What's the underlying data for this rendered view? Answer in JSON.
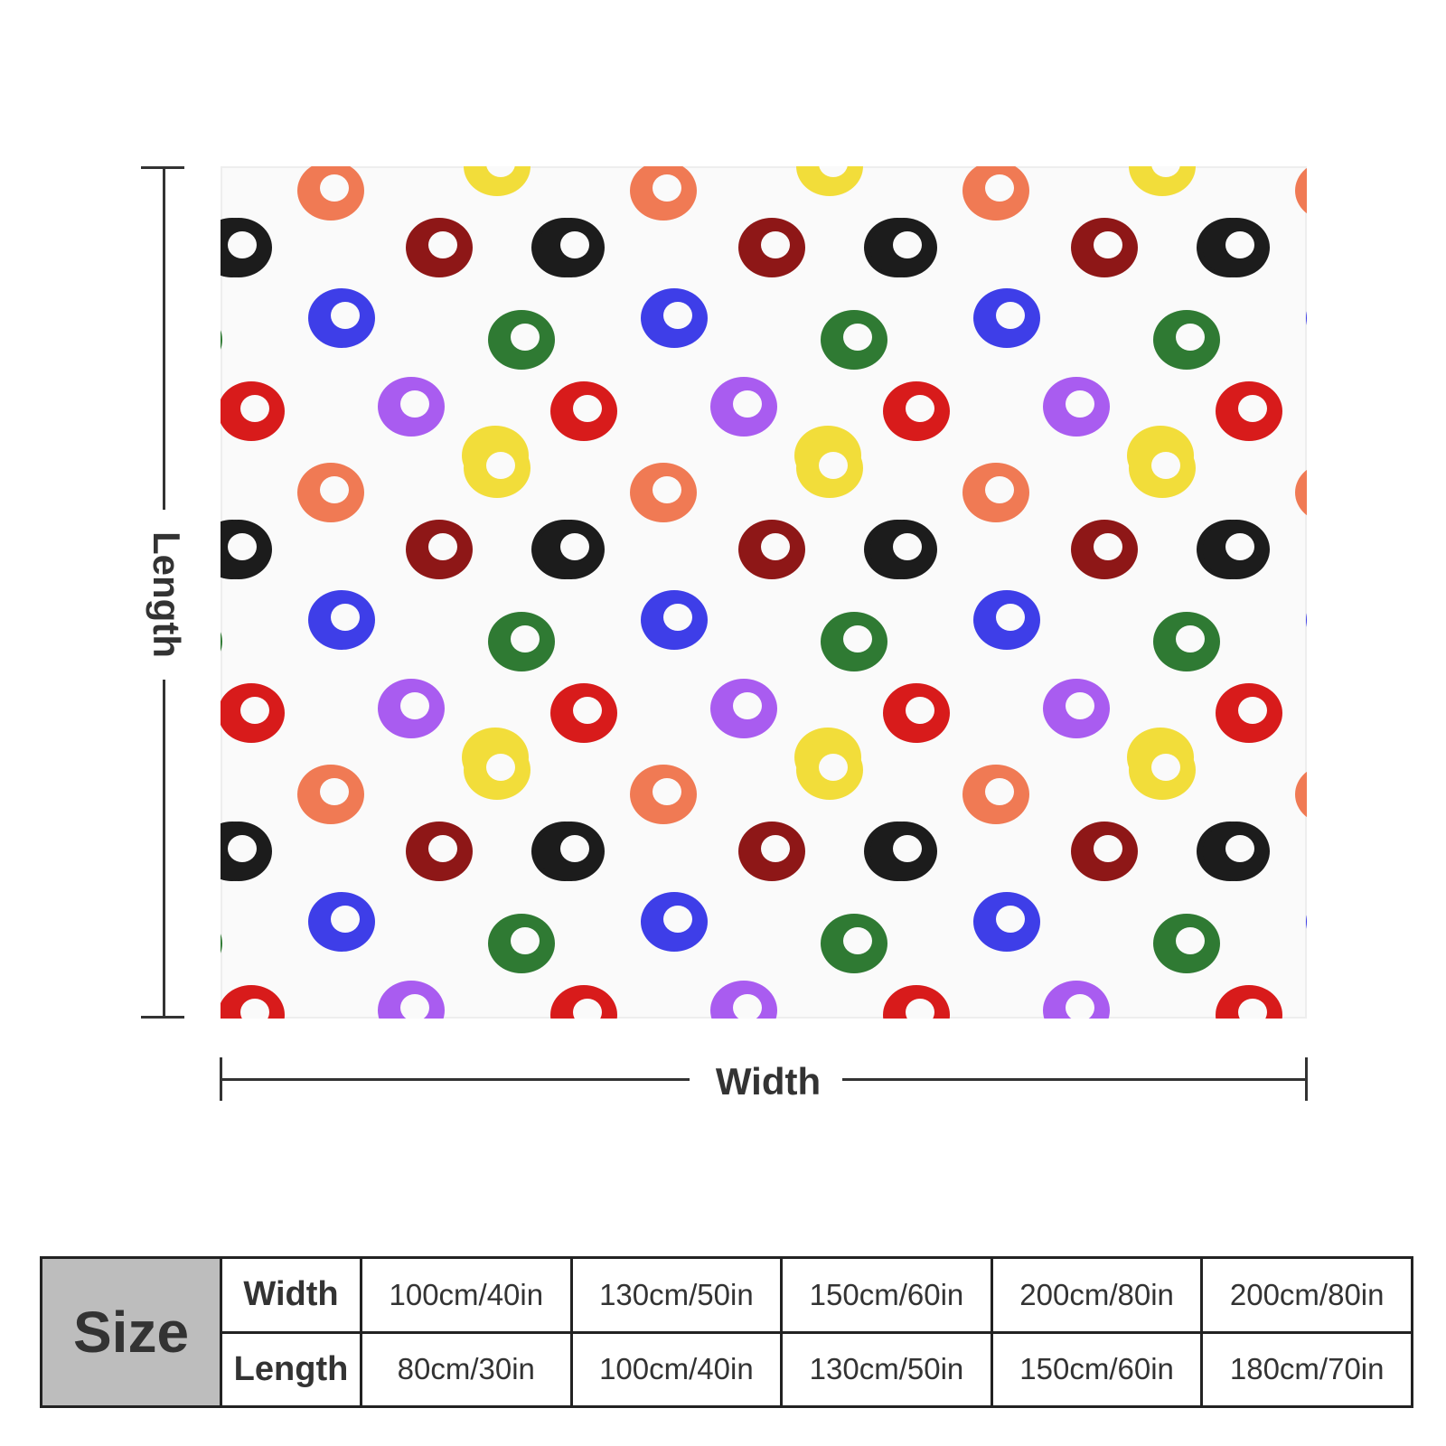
{
  "diagram": {
    "length_label": "Length",
    "width_label": "Width"
  },
  "pattern": {
    "background": "#fafafa",
    "ring_colors": {
      "orange": "#f07a54",
      "yellow": "#f2dd3a",
      "black": "#1c1c1c",
      "darkred": "#8e1717",
      "blue": "#3e3ee8",
      "green": "#2f7a33",
      "red": "#d81b1b",
      "purple": "#a95cf0"
    }
  },
  "size_table": {
    "corner": "Size",
    "rows": [
      {
        "label": "Width",
        "values": [
          "100cm/40in",
          "130cm/50in",
          "150cm/60in",
          "200cm/80in",
          "200cm/80in"
        ]
      },
      {
        "label": "Length",
        "values": [
          "80cm/30in",
          "100cm/40in",
          "130cm/50in",
          "150cm/60in",
          "180cm/70in"
        ]
      }
    ]
  }
}
